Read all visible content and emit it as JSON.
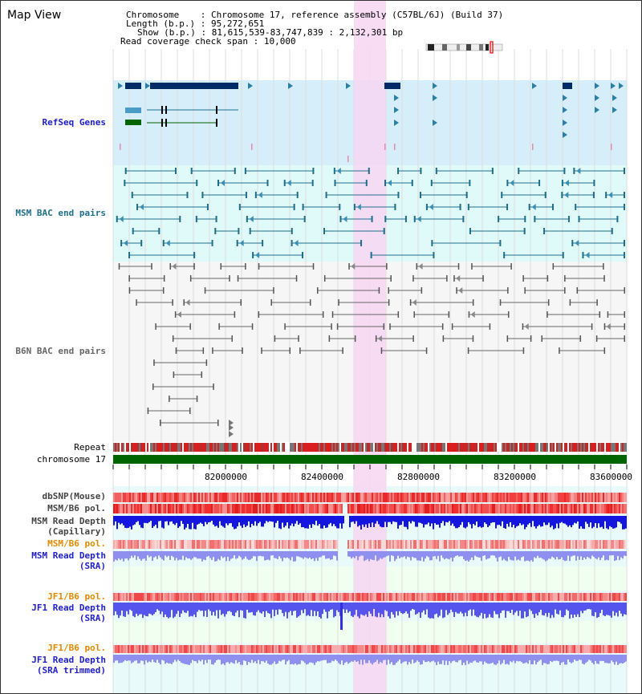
{
  "view": {
    "title": "Map View",
    "chromosome_label": "Chromosome",
    "chromosome_value": "Chromosome 17, reference assembly (C57BL/6J) (Build 37)",
    "length_label": "Length (b.p.)",
    "length_value": "95,272,651",
    "show_label": "Show (b.p.)",
    "show_value": "81,615,539-83,747,839 : 2,132,301 bp",
    "coverage_label": "Read coverage check span",
    "coverage_value": "10,000"
  },
  "tracks": {
    "refseq": "RefSeq Genes",
    "msm_bac": "MSM BAC end pairs",
    "b6n_bac": "B6N BAC end pairs",
    "repeat": "Repeat",
    "chromosome": "chromosome 17",
    "dbsnp": "dbSNP(Mouse)",
    "msm_b6_pol_1": "MSM/B6 pol.",
    "msm_read_depth_cap_1": "MSM Read Depth",
    "msm_read_depth_cap_2": "(Capillary)",
    "msm_b6_pol_2": "MSM/B6 pol.",
    "msm_read_depth_sra_1": "MSM Read Depth",
    "msm_read_depth_sra_2": "(SRA)",
    "jf1_b6_pol_1": "JF1/B6 pol.",
    "jf1_read_depth_1": "JF1 Read Depth",
    "jf1_read_depth_2": "(SRA)",
    "jf1_b6_pol_2": "JF1/B6 pol.",
    "jf1_read_depth_trim_1": "JF1 Read Depth",
    "jf1_read_depth_trim_2": "(SRA trimmed)"
  },
  "axis": {
    "ticks": [
      "82000000",
      "82400000",
      "82800000",
      "83200000",
      "83600000"
    ]
  },
  "colors": {
    "highlight": "#f7d6f2",
    "refseq_bg": "#d6eefa",
    "bac_bg": "#e0fafa",
    "sra_bg": "#f0fff0",
    "chromosome_bar": "#006400",
    "gene_dark": "#002b66",
    "gene_green": "#006400",
    "bac_teal": "#1f6f8b"
  }
}
